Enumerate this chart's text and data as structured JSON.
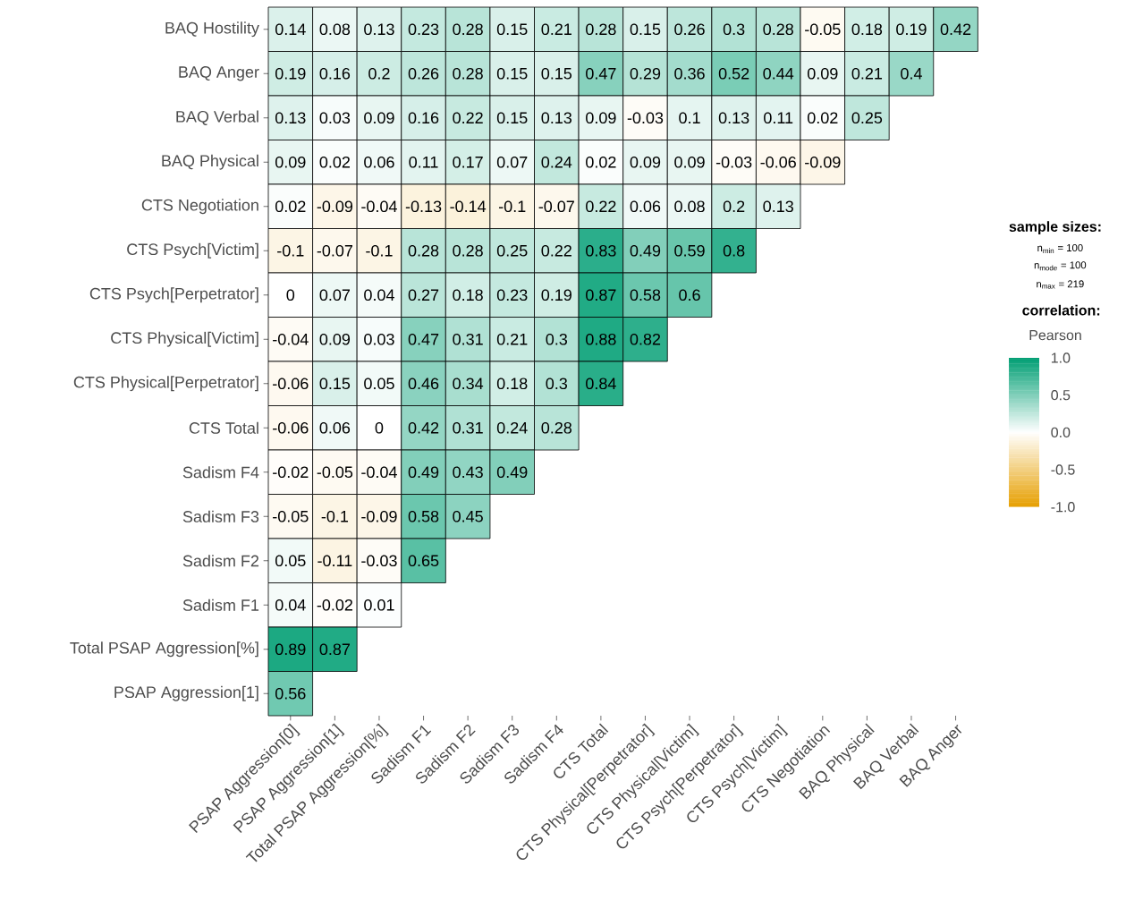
{
  "chart_data": {
    "type": "heatmap",
    "legend_title": "sample sizes:",
    "clabel": "correlation:",
    "annotations": [
      "n$_{min}$ = 100",
      "n$_{mode}$ = 100",
      "n$_{max}$ = 219",
      "Pearson"
    ],
    "categories": [
      "PSAP Aggression[0]",
      "PSAP Aggression[1]",
      "Total PSAP Aggression[%]",
      "Sadism F1",
      "Sadism F2",
      "Sadism F3",
      "Sadism F4",
      "CTS Total",
      "CTS Physical[Perpetrator]",
      "CTS Physical[Victim]",
      "CTS Psych[Perpetrator]",
      "CTS Psych[Victim]",
      "CTS Negotiation",
      "BAQ Physical",
      "BAQ Verbal",
      "BAQ Anger"
    ],
    "y_categories": [
      "BAQ Hostility",
      "BAQ Anger",
      "BAQ Verbal",
      "BAQ Physical",
      "CTS Negotiation",
      "CTS Psych[Victim]",
      "CTS Psych[Perpetrator]",
      "CTS Physical[Victim]",
      "CTS Physical[Perpetrator]",
      "CTS Total",
      "Sadism F4",
      "Sadism F3",
      "Sadism F2",
      "Sadism F1",
      "Total PSAP Aggression[%]",
      "PSAP Aggression[1]"
    ],
    "cells": [
      [
        0.14,
        0.08,
        0.13,
        0.23,
        0.28,
        0.15,
        0.21,
        0.28,
        0.15,
        0.26,
        0.3,
        0.28,
        -0.05,
        0.18,
        0.19,
        0.42
      ],
      [
        0.19,
        0.16,
        0.2,
        0.26,
        0.28,
        0.15,
        0.15,
        0.47,
        0.29,
        0.36,
        0.52,
        0.44,
        0.09,
        0.21,
        0.4,
        null
      ],
      [
        0.13,
        0.03,
        0.09,
        0.16,
        0.22,
        0.15,
        0.13,
        0.09,
        -0.03,
        0.1,
        0.13,
        0.11,
        0.02,
        0.25,
        null,
        null
      ],
      [
        0.09,
        0.02,
        0.06,
        0.11,
        0.17,
        0.07,
        0.24,
        0.02,
        0.09,
        0.09,
        -0.03,
        -0.06,
        -0.09,
        null,
        null,
        null
      ],
      [
        0.02,
        -0.09,
        -0.04,
        -0.13,
        -0.14,
        -0.1,
        -0.07,
        0.22,
        0.06,
        0.08,
        0.2,
        0.13,
        null,
        null,
        null,
        null
      ],
      [
        -0.1,
        -0.07,
        -0.1,
        0.28,
        0.28,
        0.25,
        0.22,
        0.83,
        0.49,
        0.59,
        0.8,
        null,
        null,
        null,
        null,
        null
      ],
      [
        0,
        0.07,
        0.04,
        0.27,
        0.18,
        0.23,
        0.19,
        0.87,
        0.58,
        0.6,
        null,
        null,
        null,
        null,
        null,
        null
      ],
      [
        -0.04,
        0.09,
        0.03,
        0.47,
        0.31,
        0.21,
        0.3,
        0.88,
        0.82,
        null,
        null,
        null,
        null,
        null,
        null,
        null
      ],
      [
        -0.06,
        0.15,
        0.05,
        0.46,
        0.34,
        0.18,
        0.3,
        0.84,
        null,
        null,
        null,
        null,
        null,
        null,
        null,
        null
      ],
      [
        -0.06,
        0.06,
        0,
        0.42,
        0.31,
        0.24,
        0.28,
        null,
        null,
        null,
        null,
        null,
        null,
        null,
        null,
        null
      ],
      [
        -0.02,
        -0.05,
        -0.04,
        0.49,
        0.43,
        0.49,
        null,
        null,
        null,
        null,
        null,
        null,
        null,
        null,
        null,
        null
      ],
      [
        -0.05,
        -0.1,
        -0.09,
        0.58,
        0.45,
        null,
        null,
        null,
        null,
        null,
        null,
        null,
        null,
        null,
        null,
        null
      ],
      [
        0.05,
        -0.11,
        -0.03,
        0.65,
        null,
        null,
        null,
        null,
        null,
        null,
        null,
        null,
        null,
        null,
        null,
        null
      ],
      [
        0.04,
        -0.02,
        0.01,
        null,
        null,
        null,
        null,
        null,
        null,
        null,
        null,
        null,
        null,
        null,
        null,
        null
      ],
      [
        0.89,
        0.87,
        null,
        null,
        null,
        null,
        null,
        null,
        null,
        null,
        null,
        null,
        null,
        null,
        null,
        null
      ],
      [
        0.56,
        null,
        null,
        null,
        null,
        null,
        null,
        null,
        null,
        null,
        null,
        null,
        null,
        null,
        null,
        null
      ]
    ],
    "cell_labels": [
      [
        "0.14",
        "0.08",
        "0.13",
        "0.23",
        "0.28",
        "0.15",
        "0.21",
        "0.28",
        "0.15",
        "0.26",
        "0.3",
        "0.28",
        "-0.05",
        "0.18",
        "0.19",
        "0.42"
      ],
      [
        "0.19",
        "0.16",
        "0.2",
        "0.26",
        "0.28",
        "0.15",
        "0.15",
        "0.47",
        "0.29",
        "0.36",
        "0.52",
        "0.44",
        "0.09",
        "0.21",
        "0.4",
        null
      ],
      [
        "0.13",
        "0.03",
        "0.09",
        "0.16",
        "0.22",
        "0.15",
        "0.13",
        "0.09",
        "-0.03",
        "0.1",
        "0.13",
        "0.11",
        "0.02",
        "0.25",
        null,
        null
      ],
      [
        "0.09",
        "0.02",
        "0.06",
        "0.11",
        "0.17",
        "0.07",
        "0.24",
        "0.02",
        "0.09",
        "0.09",
        "-0.03",
        "-0.06",
        "-0.09",
        null,
        null,
        null
      ],
      [
        "0.02",
        "-0.09",
        "-0.04",
        "-0.13",
        "-0.14",
        "-0.1",
        "-0.07",
        "0.22",
        "0.06",
        "0.08",
        "0.2",
        "0.13",
        null,
        null,
        null,
        null
      ],
      [
        "-0.1",
        "-0.07",
        "-0.1",
        "0.28",
        "0.28",
        "0.25",
        "0.22",
        "0.83",
        "0.49",
        "0.59",
        "0.8",
        null,
        null,
        null,
        null,
        null
      ],
      [
        "0",
        "0.07",
        "0.04",
        "0.27",
        "0.18",
        "0.23",
        "0.19",
        "0.87",
        "0.58",
        "0.6",
        null,
        null,
        null,
        null,
        null,
        null
      ],
      [
        "-0.04",
        "0.09",
        "0.03",
        "0.47",
        "0.31",
        "0.21",
        "0.3",
        "0.88",
        "0.82",
        null,
        null,
        null,
        null,
        null,
        null,
        null
      ],
      [
        "-0.06",
        "0.15",
        "0.05",
        "0.46",
        "0.34",
        "0.18",
        "0.3",
        "0.84",
        null,
        null,
        null,
        null,
        null,
        null,
        null,
        null
      ],
      [
        "-0.06",
        "0.06",
        "0",
        "0.42",
        "0.31",
        "0.24",
        "0.28",
        null,
        null,
        null,
        null,
        null,
        null,
        null,
        null,
        null
      ],
      [
        "-0.02",
        "-0.05",
        "-0.04",
        "0.49",
        "0.43",
        "0.49",
        null,
        null,
        null,
        null,
        null,
        null,
        null,
        null,
        null,
        null
      ],
      [
        "-0.05",
        "-0.1",
        "-0.09",
        "0.58",
        "0.45",
        null,
        null,
        null,
        null,
        null,
        null,
        null,
        null,
        null,
        null,
        null
      ],
      [
        "0.05",
        "-0.11",
        "-0.03",
        "0.65",
        null,
        null,
        null,
        null,
        null,
        null,
        null,
        null,
        null,
        null,
        null,
        null
      ],
      [
        "0.04",
        "-0.02",
        "0.01",
        null,
        null,
        null,
        null,
        null,
        null,
        null,
        null,
        null,
        null,
        null,
        null,
        null
      ],
      [
        "0.89",
        "0.87",
        null,
        null,
        null,
        null,
        null,
        null,
        null,
        null,
        null,
        null,
        null,
        null,
        null,
        null
      ],
      [
        "0.56",
        null,
        null,
        null,
        null,
        null,
        null,
        null,
        null,
        null,
        null,
        null,
        null,
        null,
        null,
        null
      ]
    ],
    "clim": [
      -1,
      1
    ],
    "cticks": [
      {
        "value": -1,
        "label": "-1.0"
      },
      {
        "value": -0.5,
        "label": "-0.5"
      },
      {
        "value": 0,
        "label": "0.0"
      },
      {
        "value": 0.5,
        "label": "0.5"
      },
      {
        "value": 1,
        "label": "1.0"
      }
    ]
  }
}
